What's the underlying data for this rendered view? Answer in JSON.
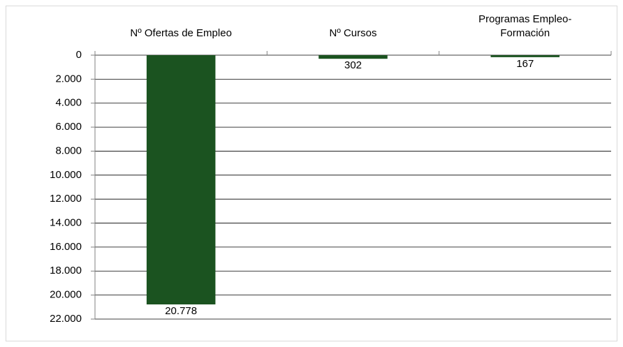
{
  "chart_data": {
    "type": "bar",
    "categories": [
      "Nº Ofertas de Empleo",
      "Nº Cursos",
      "Programas Empleo-Formación"
    ],
    "values": [
      20778,
      302,
      167
    ],
    "value_labels": [
      "20.778",
      "302",
      "167"
    ],
    "color": "#1b5320",
    "ylim": [
      0,
      22000
    ],
    "inverted": true,
    "yticks": [
      0,
      {
        "value": 2000,
        "label": "2.000"
      },
      {
        "value": 4000,
        "label": "4.000"
      },
      {
        "value": 6000,
        "label": "6.000"
      },
      {
        "value": 8000,
        "label": "8.000"
      },
      {
        "value": 10000,
        "label": "10.000"
      },
      {
        "value": 12000,
        "label": "12.000"
      },
      {
        "value": 14000,
        "label": "14.000"
      },
      {
        "value": 16000,
        "label": "16.000"
      },
      {
        "value": 18000,
        "label": "18.000"
      },
      {
        "value": 20000,
        "label": "20.000"
      },
      {
        "value": 22000,
        "label": "22.000"
      }
    ],
    "grid": true
  }
}
